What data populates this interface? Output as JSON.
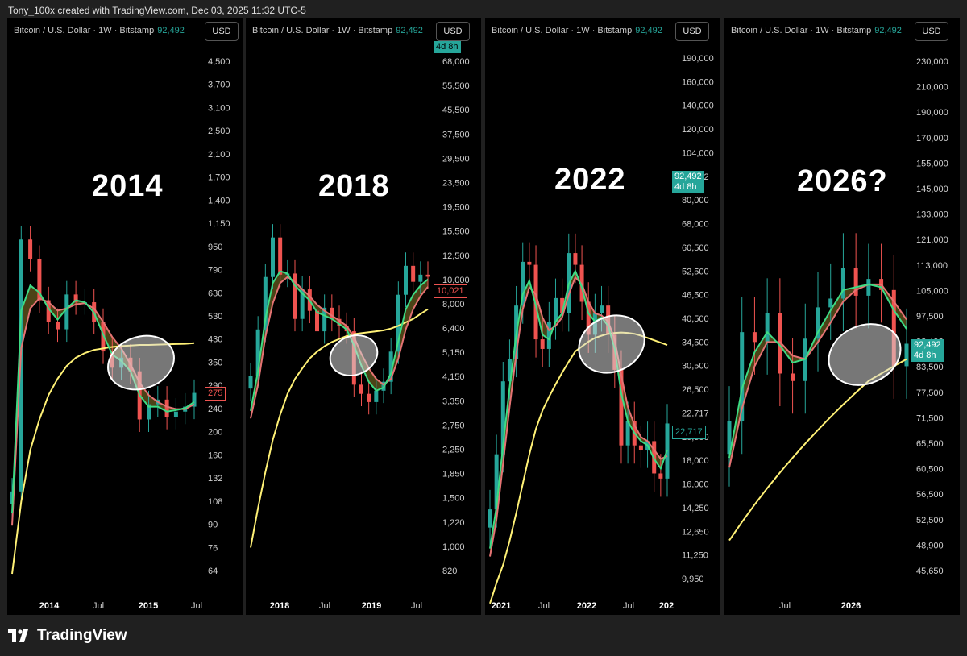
{
  "credit": "Tony_100x created with TradingView.com, Dec 03, 2025 11:32 UTC-5",
  "brand": "TradingView",
  "colors": {
    "up": "#26a69a",
    "down": "#ef5350",
    "fast_ma": "#3ddc84",
    "slow_ma": "#e57373",
    "long_ma": "#fff176",
    "fill": "#8a7a2a"
  },
  "header": {
    "symbol": "Bitcoin / U.S. Dollar · 1W · Bitstamp",
    "price": "92,492",
    "currency": "USD"
  },
  "chart_data": [
    {
      "type": "candlestick",
      "label": "2014",
      "yticks": [
        "4,500",
        "3,700",
        "3,100",
        "2,500",
        "2,100",
        "1,700",
        "1,400",
        "1,150",
        "950",
        "790",
        "630",
        "530",
        "430",
        "350",
        "290",
        "240",
        "200",
        "160",
        "132",
        "108",
        "90",
        "76",
        "64"
      ],
      "xticks": [
        "2014",
        "Jul",
        "2015",
        "Jul"
      ],
      "price_tags": [
        {
          "text": "275",
          "style": "rbox"
        }
      ],
      "x": [
        "2013-11",
        "2013-12",
        "2014-01",
        "2014-02",
        "2014-03",
        "2014-04",
        "2014-05",
        "2014-06",
        "2014-07",
        "2014-08",
        "2014-09",
        "2014-10",
        "2014-11",
        "2014-12",
        "2015-01",
        "2015-02",
        "2015-03",
        "2015-04",
        "2015-05",
        "2015-06",
        "2015-07"
      ],
      "close": [
        120,
        1000,
        850,
        600,
        500,
        470,
        630,
        590,
        590,
        500,
        390,
        340,
        370,
        330,
        220,
        250,
        260,
        225,
        235,
        245,
        275
      ],
      "fast_ma": [
        100,
        550,
        680,
        640,
        560,
        510,
        560,
        600,
        590,
        540,
        450,
        380,
        360,
        330,
        270,
        245,
        245,
        235,
        238,
        242,
        255
      ],
      "slow_ma": [
        90,
        400,
        560,
        610,
        590,
        550,
        560,
        580,
        585,
        560,
        500,
        440,
        400,
        350,
        300,
        270,
        255,
        245,
        240,
        240,
        250
      ],
      "long_ma": [
        60,
        110,
        170,
        220,
        270,
        310,
        345,
        370,
        385,
        395,
        400,
        405,
        408,
        410,
        412,
        412,
        413,
        414,
        415,
        416,
        418
      ]
    },
    {
      "type": "candlestick",
      "label": "2018",
      "yticks": [
        "68,000",
        "55,500",
        "45,500",
        "37,500",
        "29,500",
        "23,500",
        "19,500",
        "15,500",
        "12,500",
        "10,000",
        "8,000",
        "6,400",
        "5,150",
        "4,150",
        "3,350",
        "2,750",
        "2,250",
        "1,850",
        "1,500",
        "1,220",
        "1,000",
        "820"
      ],
      "xticks": [
        "2018",
        "Jul",
        "2019",
        "Jul"
      ],
      "price_tags": [
        {
          "text": "4d 8h",
          "style": "gcut"
        },
        {
          "text": "10,021",
          "style": "rbox"
        }
      ],
      "x": [
        "2017-09",
        "2017-10",
        "2017-11",
        "2017-12",
        "2018-01",
        "2018-02",
        "2018-03",
        "2018-04",
        "2018-05",
        "2018-06",
        "2018-07",
        "2018-08",
        "2018-09",
        "2018-10",
        "2018-11",
        "2018-12",
        "2019-01",
        "2019-02",
        "2019-03",
        "2019-04",
        "2019-05",
        "2019-06",
        "2019-07",
        "2019-08",
        "2019-09"
      ],
      "close": [
        4300,
        6400,
        10000,
        14000,
        10200,
        10300,
        7000,
        9000,
        7500,
        6300,
        7700,
        7000,
        6600,
        6300,
        4000,
        3700,
        3450,
        3800,
        4100,
        5300,
        8600,
        11000,
        9600,
        10200,
        10021
      ],
      "fast_ma": [
        3200,
        4500,
        7000,
        9500,
        10500,
        10300,
        9300,
        8700,
        8200,
        7400,
        7200,
        7000,
        6700,
        6400,
        5600,
        4700,
        4100,
        3800,
        3900,
        4400,
        5800,
        7600,
        8600,
        9300,
        9800
      ],
      "slow_ma": [
        3000,
        4000,
        6000,
        8000,
        9500,
        10000,
        9600,
        9000,
        8500,
        7900,
        7500,
        7200,
        6900,
        6600,
        6000,
        5200,
        4600,
        4200,
        4000,
        4200,
        5000,
        6400,
        7600,
        8500,
        9200
      ],
      "long_ma": [
        1000,
        1400,
        1900,
        2500,
        3100,
        3700,
        4200,
        4600,
        5000,
        5300,
        5550,
        5750,
        5900,
        6050,
        6150,
        6200,
        6250,
        6300,
        6350,
        6450,
        6600,
        6800,
        7000,
        7300,
        7600
      ]
    },
    {
      "type": "candlestick",
      "label": "2022",
      "yticks": [
        "190,000",
        "160,000",
        "140,000",
        "120,000",
        "104,000",
        "92,492",
        "80,000",
        "68,000",
        "60,500",
        "52,500",
        "46,500",
        "40,500",
        "34,500",
        "30,500",
        "26,500",
        "22,717",
        "20,500",
        "18,000",
        "16,000",
        "14,250",
        "12,650",
        "11,250",
        "9,950"
      ],
      "xticks": [
        "2021",
        "Jul",
        "2022",
        "Jul",
        "202"
      ],
      "price_tags": [
        {
          "text": "92,492\n4d 8h",
          "style": "green"
        },
        {
          "text": "22,717",
          "style": "gbox"
        }
      ],
      "x": [
        "2020-10",
        "2020-11",
        "2020-12",
        "2021-01",
        "2021-02",
        "2021-03",
        "2021-04",
        "2021-05",
        "2021-06",
        "2021-07",
        "2021-08",
        "2021-09",
        "2021-10",
        "2021-11",
        "2021-12",
        "2022-01",
        "2022-02",
        "2022-03",
        "2022-04",
        "2022-05",
        "2022-06",
        "2022-07",
        "2022-08",
        "2022-09",
        "2022-10",
        "2022-11",
        "2022-12",
        "2023-01"
      ],
      "close": [
        13800,
        19000,
        29000,
        33000,
        45000,
        58000,
        57000,
        37000,
        35000,
        41000,
        47000,
        43000,
        61000,
        57000,
        46000,
        38000,
        43000,
        45000,
        38000,
        31000,
        20000,
        23000,
        20000,
        19500,
        20500,
        17000,
        16500,
        22717
      ],
      "fast_ma": [
        11000,
        14000,
        20000,
        28000,
        38000,
        48000,
        52000,
        45000,
        38000,
        37000,
        41000,
        43000,
        51000,
        55000,
        50000,
        43000,
        41000,
        42000,
        40000,
        35000,
        27000,
        23000,
        21500,
        20500,
        20000,
        18500,
        17500,
        19500
      ],
      "slow_ma": [
        10500,
        13000,
        18000,
        25000,
        34000,
        44000,
        50000,
        48000,
        42000,
        39000,
        40000,
        42000,
        48000,
        53000,
        51000,
        46000,
        43000,
        42500,
        41000,
        37000,
        30000,
        25000,
        22500,
        21000,
        20500,
        19500,
        18500,
        18800
      ],
      "long_ma": [
        8000,
        9000,
        10000,
        11500,
        13500,
        16000,
        19000,
        22000,
        24500,
        26500,
        28500,
        30500,
        32500,
        34500,
        35500,
        36500,
        37300,
        37800,
        38200,
        38400,
        38500,
        38400,
        38200,
        37800,
        37300,
        36800,
        36300,
        35800
      ]
    },
    {
      "type": "candlestick",
      "label": "2026?",
      "yticks": [
        "230,000",
        "210,000",
        "190,000",
        "170,000",
        "155,000",
        "145,000",
        "133,000",
        "121,000",
        "113,000",
        "105,000",
        "97,500",
        "92,492",
        "83,500",
        "77,500",
        "71,500",
        "65,500",
        "60,500",
        "56,500",
        "52,500",
        "48,900",
        "45,650"
      ],
      "xticks": [
        "Jul",
        "2026"
      ],
      "price_tags": [
        {
          "text": "92,492\n4d 8h",
          "style": "green"
        }
      ],
      "x": [
        "2024-10",
        "2024-11",
        "2024-12",
        "2025-01",
        "2025-02",
        "2025-03",
        "2025-04",
        "2025-05",
        "2025-06",
        "2025-07",
        "2025-08",
        "2025-09",
        "2025-10",
        "2025-11",
        "2025-12"
      ],
      "close": [
        72000,
        96000,
        93000,
        102000,
        84000,
        82000,
        94000,
        104000,
        107000,
        118000,
        108000,
        114000,
        110000,
        86000,
        92492
      ],
      "fast_ma": [
        64000,
        80000,
        90000,
        96000,
        92000,
        87000,
        88000,
        96000,
        103000,
        110000,
        111000,
        112000,
        111000,
        103000,
        97000
      ],
      "slow_ma": [
        62000,
        75000,
        86000,
        93000,
        93000,
        89000,
        88000,
        93000,
        99000,
        106000,
        110000,
        112000,
        112000,
        106000,
        100000
      ],
      "long_ma": [
        49000,
        52000,
        55000,
        58000,
        61000,
        64000,
        67000,
        70000,
        73000,
        76000,
        79000,
        82000,
        84000,
        86000,
        88000
      ]
    }
  ]
}
